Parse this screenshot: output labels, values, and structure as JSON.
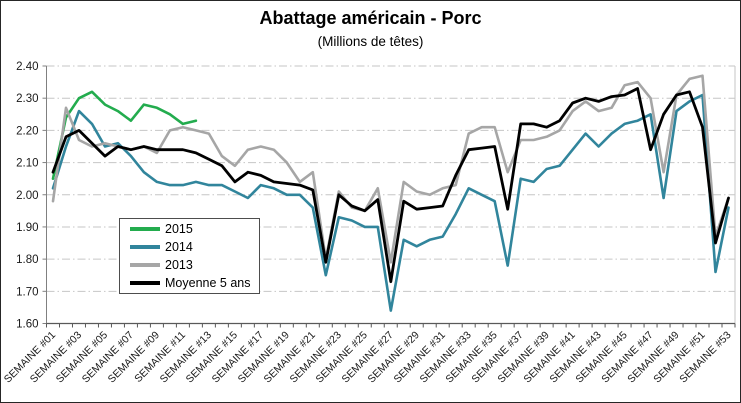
{
  "chart": {
    "title": "Abattage américain - Porc",
    "subtitle": "(Millions de têtes)",
    "y_ticks": [
      "2.40",
      "2.30",
      "2.20",
      "2.10",
      "2.00",
      "1.90",
      "1.80",
      "1.70",
      "1.60"
    ],
    "x_tick_labels": [
      "SEMAINE #01",
      "SEMAINE #03",
      "SEMAINE #05",
      "SEMAINE #07",
      "SEMAINE #09",
      "SEMAINE #11",
      "SEMAINE #13",
      "SEMAINE #15",
      "SEMAINE #17",
      "SEMAINE #19",
      "SEMAINE #21",
      "SEMAINE #23",
      "SEMAINE #25",
      "SEMAINE #27",
      "SEMAINE #29",
      "SEMAINE #31",
      "SEMAINE #33",
      "SEMAINE #35",
      "SEMAINE #37",
      "SEMAINE #39",
      "SEMAINE #41",
      "SEMAINE #43",
      "SEMAINE #45",
      "SEMAINE #47",
      "SEMAINE #49",
      "SEMAINE #51",
      "SEMAINE #53"
    ]
  },
  "chart_data": {
    "type": "line",
    "title": "Abattage américain - Porc",
    "subtitle": "(Millions de têtes)",
    "x_unit": "semaine",
    "weeks": 53,
    "x_tick_step": 2,
    "ylim": [
      1.6,
      2.4
    ],
    "y_step": 0.1,
    "grid": "horizontal dash-dot",
    "legend_position": "middle-left box",
    "colors": {
      "grid": "#c6c6c6",
      "axis": "#595959",
      "plot_border": "#c6c6c6"
    },
    "series": [
      {
        "name": "2015",
        "color": "#23ac4e",
        "start_week": 1,
        "values": [
          2.05,
          2.24,
          2.3,
          2.32,
          2.28,
          2.26,
          2.23,
          2.28,
          2.27,
          2.25,
          2.22,
          2.23
        ]
      },
      {
        "name": "2014",
        "color": "#31859c",
        "start_week": 1,
        "values": [
          2.02,
          2.15,
          2.26,
          2.22,
          2.15,
          2.16,
          2.12,
          2.07,
          2.04,
          2.03,
          2.03,
          2.04,
          2.03,
          2.03,
          2.01,
          1.99,
          2.03,
          2.02,
          2.0,
          2.0,
          1.96,
          1.75,
          1.93,
          1.92,
          1.9,
          1.9,
          1.64,
          1.86,
          1.84,
          1.86,
          1.87,
          1.94,
          2.02,
          2.0,
          1.98,
          1.78,
          2.05,
          2.04,
          2.08,
          2.09,
          2.14,
          2.19,
          2.15,
          2.19,
          2.22,
          2.23,
          2.25,
          1.99,
          2.26,
          2.29,
          2.31,
          1.76,
          1.96
        ]
      },
      {
        "name": "2013",
        "color": "#a6a6a6",
        "start_week": 1,
        "values": [
          1.98,
          2.27,
          2.17,
          2.15,
          2.16,
          2.15,
          2.14,
          2.15,
          2.13,
          2.2,
          2.21,
          2.2,
          2.19,
          2.12,
          2.09,
          2.14,
          2.15,
          2.14,
          2.1,
          2.04,
          2.07,
          1.8,
          2.01,
          1.96,
          1.95,
          2.02,
          1.79,
          2.04,
          2.01,
          2.0,
          2.02,
          2.03,
          2.19,
          2.21,
          2.21,
          2.07,
          2.17,
          2.17,
          2.18,
          2.2,
          2.26,
          2.29,
          2.26,
          2.27,
          2.34,
          2.35,
          2.3,
          2.07,
          2.31,
          2.36,
          2.37,
          1.87,
          1.99
        ]
      },
      {
        "name": "Moyenne 5 ans",
        "color": "#000000",
        "start_week": 1,
        "values": [
          2.07,
          2.18,
          2.2,
          2.16,
          2.12,
          2.15,
          2.14,
          2.15,
          2.14,
          2.14,
          2.14,
          2.13,
          2.11,
          2.09,
          2.04,
          2.07,
          2.06,
          2.04,
          2.035,
          2.03,
          2.015,
          1.79,
          2.0,
          1.965,
          1.95,
          1.985,
          1.73,
          1.98,
          1.955,
          1.96,
          1.965,
          2.06,
          2.14,
          2.145,
          2.15,
          1.955,
          2.22,
          2.22,
          2.21,
          2.23,
          2.285,
          2.3,
          2.29,
          2.305,
          2.31,
          2.33,
          2.14,
          2.25,
          2.31,
          2.32,
          2.21,
          1.85,
          1.99
        ]
      }
    ]
  }
}
